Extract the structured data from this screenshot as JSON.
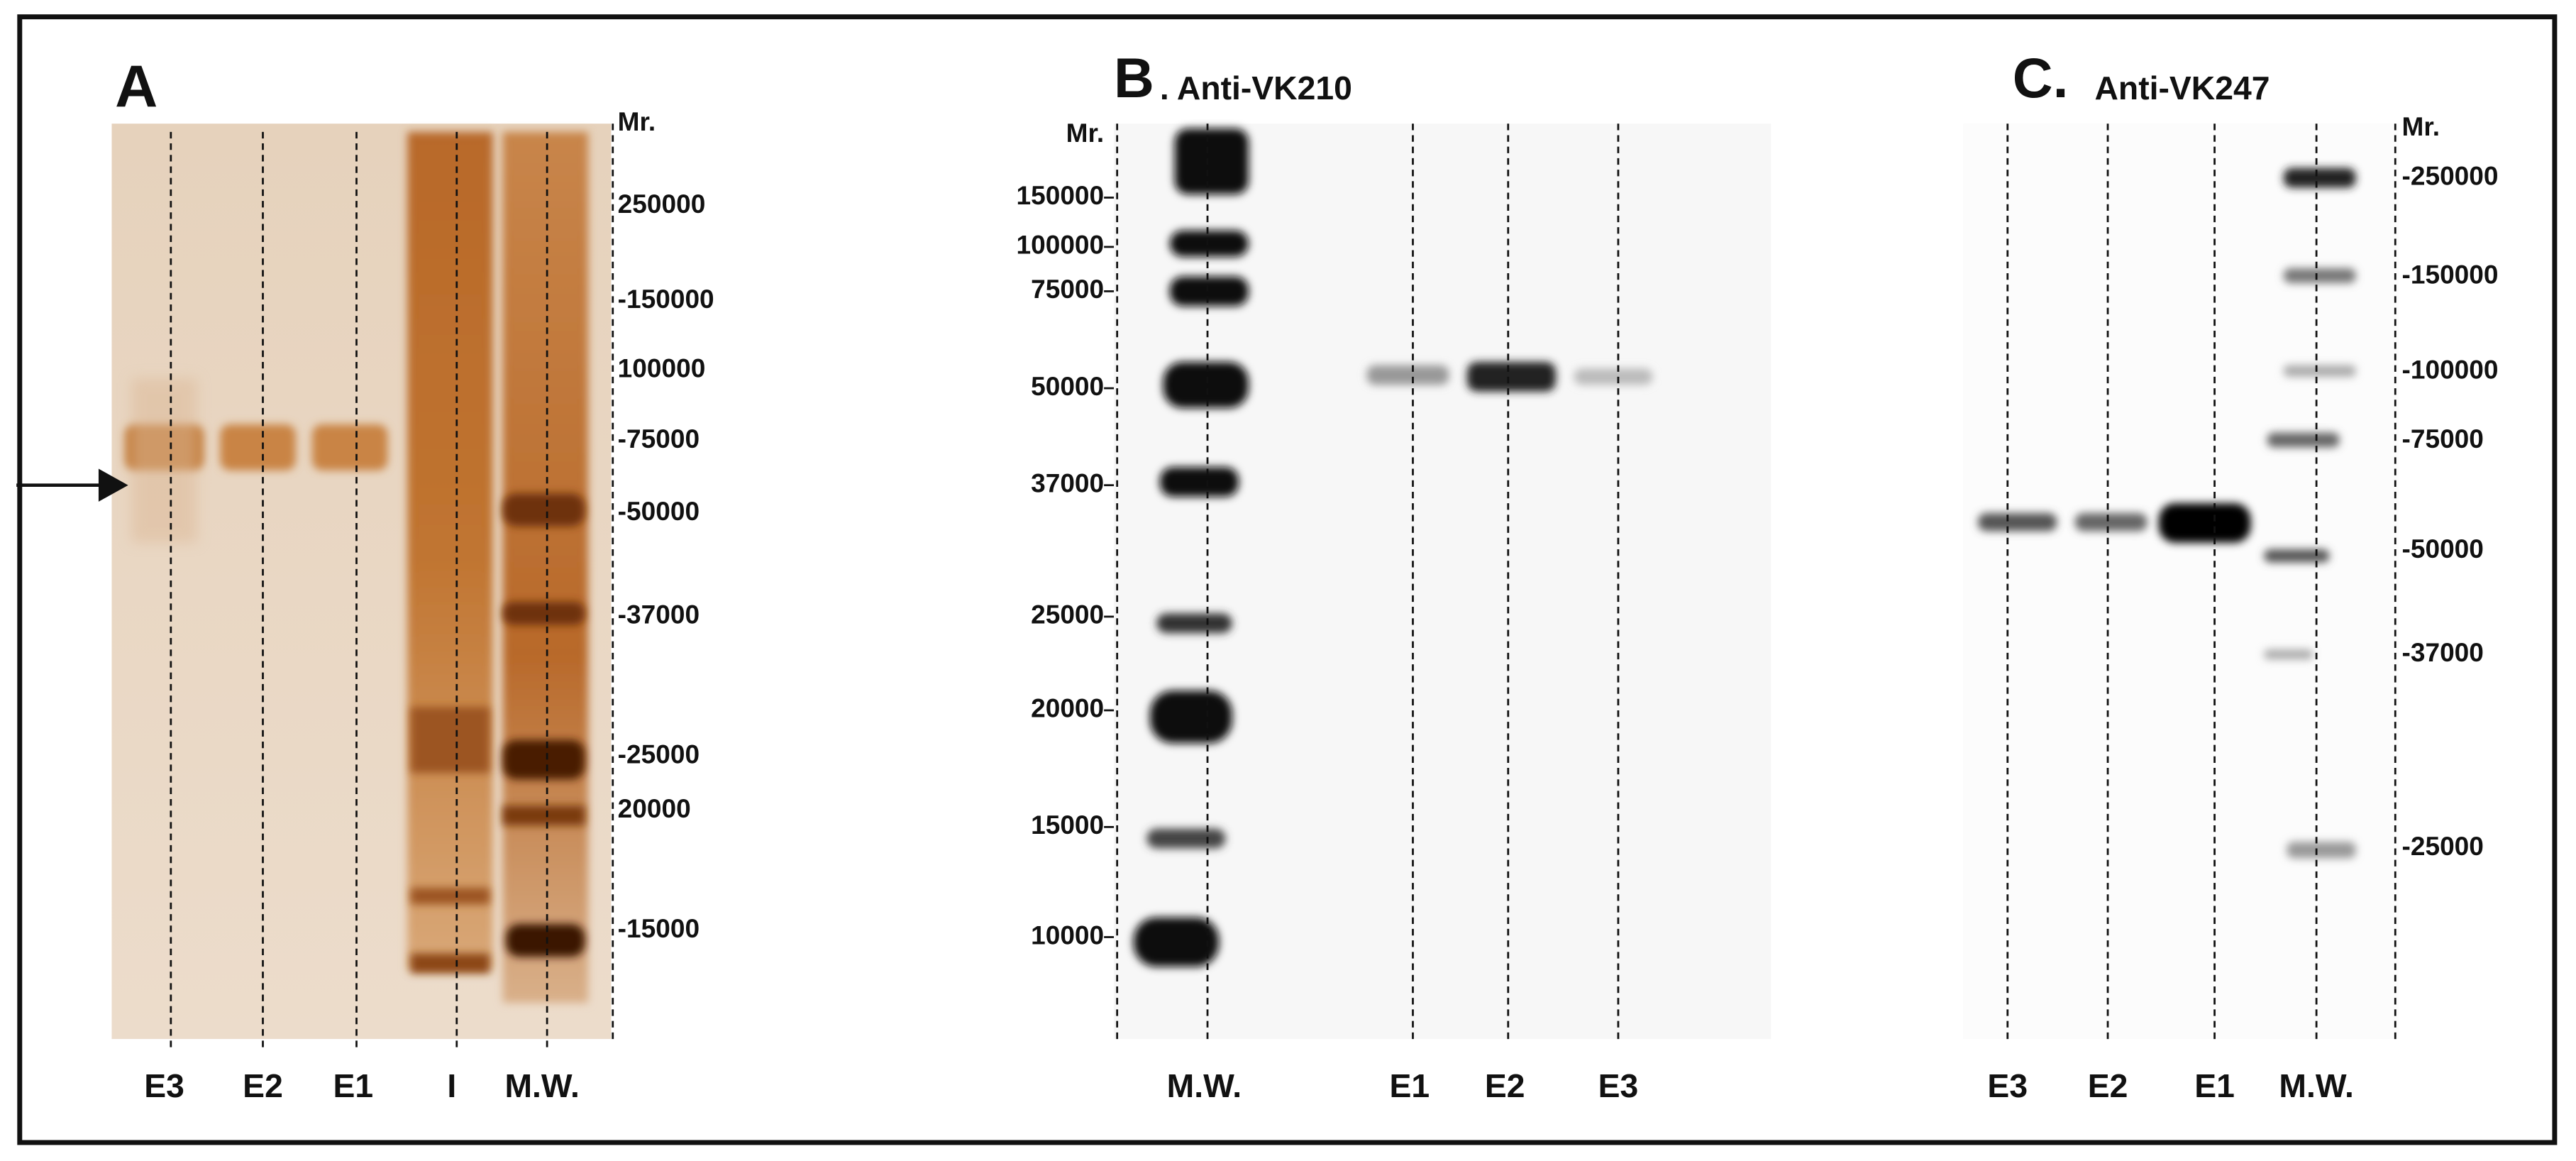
{
  "panels": [
    {
      "letter": "A",
      "mr_labels": [
        "Mr.",
        "250000",
        "-150000",
        "100000",
        "-75000",
        "-50000",
        "-37000",
        "-25000",
        "20000",
        "-15000"
      ],
      "lanes": [
        "E3",
        "E2",
        "E1",
        "I",
        "M.W."
      ]
    },
    {
      "letter": "B",
      "title": ". Anti-VK210",
      "mr_labels": [
        "Mr.",
        "150000",
        "100000",
        "75000",
        "50000",
        "37000",
        "25000",
        "20000",
        "15000",
        "10000"
      ],
      "lanes": [
        "M.W.",
        "E1",
        "E2",
        "E3"
      ]
    },
    {
      "letter": "C.",
      "title": "Anti-VK247",
      "mr_labels": [
        "Mr.",
        "-250000",
        "-150000",
        "-100000",
        "-75000",
        "-50000",
        "-37000",
        "-25000"
      ],
      "lanes": [
        "E3",
        "E2",
        "E1",
        "M.W."
      ]
    }
  ]
}
